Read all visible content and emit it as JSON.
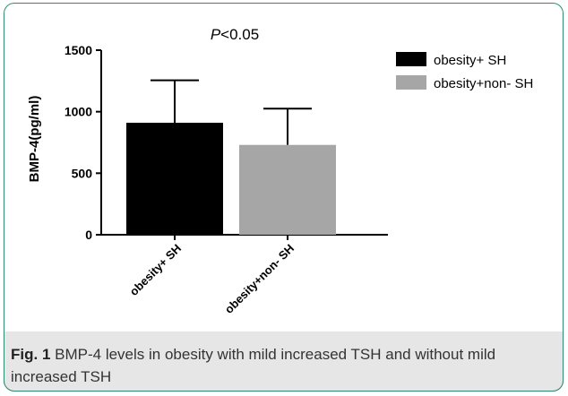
{
  "chart_data": {
    "type": "bar",
    "annotation_prefix": "P",
    "annotation_suffix": "<0.05",
    "ylabel": "BMP-4(pg/ml)",
    "xlabel": "",
    "ylim": [
      0,
      1500
    ],
    "yticks": [
      0,
      500,
      1000,
      1500
    ],
    "categories": [
      "obesity+ SH",
      "obesity+non- SH"
    ],
    "values": [
      910,
      730
    ],
    "error_upper": [
      1255,
      1025
    ],
    "colors": [
      "#000000",
      "#a6a6a6"
    ],
    "legend": [
      {
        "label": "obesity+ SH",
        "color": "#000000"
      },
      {
        "label": "obesity+non- SH",
        "color": "#a6a6a6"
      }
    ],
    "legend_position": "top-right"
  },
  "caption": {
    "fig_label": "Fig. 1",
    "text": "BMP-4 levels in obesity with mild increased TSH and without mild increased TSH"
  }
}
